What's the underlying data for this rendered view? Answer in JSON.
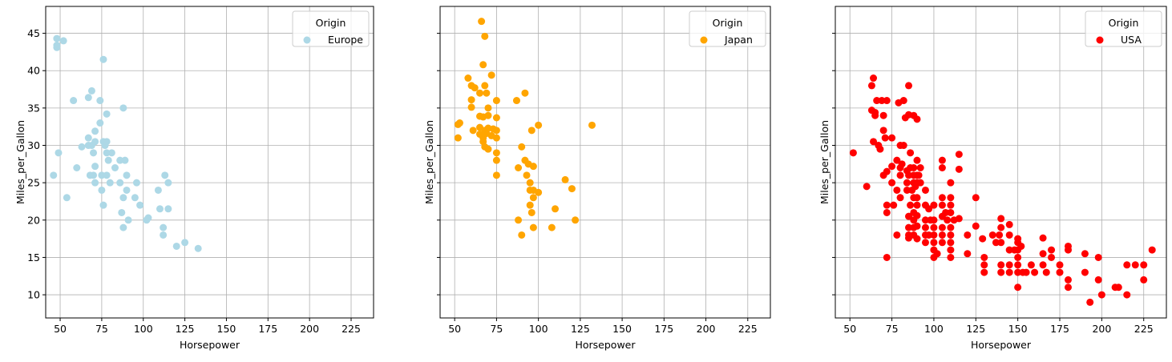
{
  "chart_data": [
    {
      "type": "scatter",
      "x_label": "Horsepower",
      "y_label": "Miles_per_Gallon",
      "legend_title": "Origin",
      "legend": "upper right",
      "grid": true,
      "ytick_labels": true,
      "xlim": [
        41.3,
        238.5
      ],
      "ylim": [
        6.9,
        48.6
      ],
      "xticks": [
        50,
        75,
        100,
        125,
        150,
        175,
        200,
        225
      ],
      "yticks": [
        10,
        15,
        20,
        25,
        30,
        35,
        40,
        45
      ],
      "series": [
        {
          "name": "Europe",
          "color": "#add8e6",
          "x": [
            48,
            48,
            48,
            52,
            46,
            49,
            54,
            58,
            60,
            63,
            67,
            69,
            67,
            67,
            68,
            69,
            70,
            70,
            71,
            71,
            71,
            71,
            74,
            74,
            75,
            75,
            76,
            76,
            76,
            77,
            78,
            78,
            78,
            78,
            79,
            80,
            81,
            83,
            86,
            86,
            87,
            88,
            88,
            88,
            89,
            90,
            90,
            91,
            95,
            96,
            98,
            102,
            103,
            109,
            110,
            112,
            112,
            113,
            115,
            115,
            120,
            125,
            133
          ],
          "y": [
            44.3,
            43.1,
            43.4,
            44,
            26,
            29,
            23,
            36,
            27,
            29.8,
            36.4,
            37.3,
            31,
            30,
            26,
            30,
            29,
            26,
            31.9,
            30.5,
            27.2,
            25,
            36,
            33,
            26,
            24,
            41.5,
            30.5,
            22,
            30,
            34.2,
            29,
            26,
            30.5,
            28,
            25,
            29,
            27,
            28,
            25,
            21,
            35,
            23,
            19,
            28,
            26,
            24,
            20,
            23,
            25,
            22,
            20,
            20.3,
            24,
            21.5,
            19,
            18,
            26,
            25,
            21.5,
            16.5,
            17,
            16.2
          ]
        }
      ]
    },
    {
      "type": "scatter",
      "x_label": "Horsepower",
      "y_label": "Miles_per_Gallon",
      "legend_title": "Origin",
      "legend": "upper right",
      "grid": true,
      "ytick_labels": false,
      "xlim": [
        41.3,
        238.5
      ],
      "ylim": [
        6.9,
        48.6
      ],
      "xticks": [
        50,
        75,
        100,
        125,
        150,
        175,
        200,
        225
      ],
      "yticks": [
        10,
        15,
        20,
        25,
        30,
        35,
        40,
        45
      ],
      "series": [
        {
          "name": "Japan",
          "color": "#ffa500",
          "x": [
            52,
            52,
            53,
            58,
            60,
            60,
            60,
            61,
            62,
            65,
            65,
            65,
            65,
            66,
            67,
            67,
            67,
            67,
            68,
            68,
            68,
            68,
            69,
            69,
            70,
            70,
            70,
            70,
            72,
            72,
            73,
            75,
            75,
            75,
            75,
            75,
            75,
            75,
            87,
            88,
            88,
            90,
            90,
            92,
            92,
            93,
            94,
            95,
            95,
            95,
            96,
            96,
            97,
            97,
            97,
            97,
            100,
            100,
            108,
            110,
            116,
            120,
            122,
            132
          ],
          "y": [
            31,
            32.8,
            33,
            39,
            38,
            36.1,
            35.1,
            32,
            37.7,
            31.5,
            33.9,
            32.4,
            37,
            46.6,
            40.8,
            33.8,
            31,
            30.5,
            44.6,
            38,
            32,
            29.8,
            37,
            31.6,
            35,
            32.3,
            29.5,
            34,
            31.3,
            39.4,
            32.2,
            36,
            33.7,
            32,
            31,
            29,
            28,
            26,
            36,
            27,
            20,
            29.8,
            18,
            37,
            28,
            26,
            27.5,
            25,
            24,
            22,
            21,
            32,
            24,
            27.2,
            23,
            19,
            23.7,
            32.7,
            19,
            21.5,
            25.4,
            24.2,
            20,
            32.7
          ]
        }
      ]
    },
    {
      "type": "scatter",
      "x_label": "Horsepower",
      "y_label": "Miles_per_Gallon",
      "legend_title": "Origin",
      "legend": "upper right",
      "grid": true,
      "ytick_labels": false,
      "xlim": [
        41.3,
        238.5
      ],
      "ylim": [
        6.9,
        48.6
      ],
      "xticks": [
        50,
        75,
        100,
        125,
        150,
        175,
        200,
        225
      ],
      "yticks": [
        10,
        15,
        20,
        25,
        30,
        35,
        40,
        45
      ],
      "series": [
        {
          "name": "USA",
          "color": "#ff0000",
          "x": [
            52,
            60,
            63,
            63,
            64,
            64,
            65,
            65,
            66,
            67,
            68,
            69,
            70,
            70,
            70,
            71,
            72,
            72,
            72,
            72,
            72,
            75,
            75,
            75,
            76,
            78,
            78,
            78,
            79,
            80,
            80,
            80,
            80,
            81,
            82,
            82,
            83,
            84,
            84,
            84,
            85,
            85,
            85,
            85,
            85,
            85,
            85,
            86,
            86,
            86,
            87,
            88,
            88,
            88,
            88,
            88,
            88,
            88,
            88,
            88,
            89,
            90,
            90,
            90,
            90,
            90,
            90,
            90,
            90,
            90,
            91,
            92,
            92,
            95,
            95,
            95,
            95,
            95,
            95,
            97,
            97,
            98,
            100,
            100,
            100,
            100,
            100,
            100,
            100,
            102,
            105,
            105,
            105,
            105,
            105,
            105,
            105,
            105,
            107,
            108,
            110,
            110,
            110,
            110,
            110,
            110,
            110,
            110,
            110,
            112,
            115,
            115,
            115,
            120,
            120,
            125,
            125,
            129,
            130,
            130,
            130,
            135,
            137,
            139,
            140,
            140,
            140,
            140,
            140,
            145,
            145,
            145,
            145,
            145,
            148,
            150,
            150,
            150,
            150,
            150,
            150,
            150,
            152,
            153,
            155,
            158,
            160,
            165,
            165,
            165,
            167,
            170,
            170,
            175,
            175,
            180,
            180,
            180,
            180,
            190,
            190,
            193,
            198,
            198,
            200,
            208,
            210,
            215,
            215,
            220,
            225,
            225,
            230
          ],
          "y": [
            29,
            24.5,
            38,
            34.7,
            39,
            30.5,
            34.4,
            34,
            36,
            30,
            29.5,
            36,
            34,
            32,
            26,
            31,
            36,
            26.5,
            22,
            21,
            15,
            31,
            27.2,
            25,
            22,
            28,
            24,
            18,
            35.7,
            30,
            27,
            26,
            23,
            27.5,
            36,
            30,
            33.7,
            26.6,
            25,
            24,
            38,
            34.1,
            26,
            20.5,
            19,
            18,
            17.6,
            29,
            27,
            22,
            24,
            34,
            27,
            26,
            25,
            23,
            21,
            20,
            19,
            18,
            24.5,
            33.5,
            28,
            26,
            25,
            23,
            22,
            20.6,
            19.2,
            17.5,
            26,
            25,
            27,
            24,
            22,
            20,
            19,
            18,
            17,
            21.5,
            18,
            20,
            22,
            20,
            19,
            18,
            17,
            16,
            15,
            15.5,
            28,
            27,
            23,
            22,
            20.5,
            19,
            18,
            17,
            21,
            20,
            25,
            23,
            22,
            21,
            19,
            18,
            17,
            16,
            15,
            20,
            28.8,
            26.8,
            20.2,
            18,
            15.5,
            23,
            19.2,
            17.5,
            15,
            14,
            13,
            18,
            17,
            18,
            20.2,
            19,
            17,
            14,
            13,
            19.4,
            18,
            16,
            14,
            13,
            16,
            17.5,
            17,
            16,
            15,
            14,
            13,
            11,
            16.5,
            13,
            13,
            14,
            13,
            17.6,
            15.5,
            14,
            13,
            15,
            16,
            14,
            13,
            16.5,
            16,
            12,
            11,
            15.5,
            13,
            9,
            15,
            12,
            10,
            11,
            11,
            14,
            10,
            14,
            14,
            12,
            16
          ]
        }
      ]
    }
  ]
}
